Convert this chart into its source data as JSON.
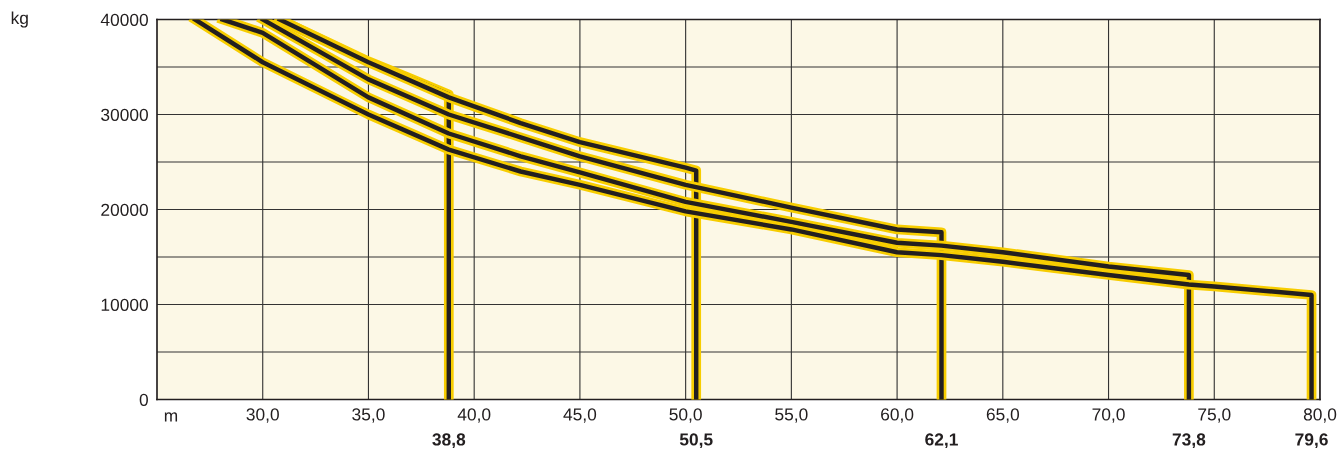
{
  "chart_data": {
    "type": "line",
    "xlabel": "m",
    "ylabel": "kg",
    "xlim": [
      25,
      80
    ],
    "ylim": [
      0,
      40000
    ],
    "xticks": [
      {
        "value": 30,
        "label": "30,0"
      },
      {
        "value": 35,
        "label": "35,0"
      },
      {
        "value": 40,
        "label": "40,0"
      },
      {
        "value": 45,
        "label": "45,0"
      },
      {
        "value": 50,
        "label": "50,0"
      },
      {
        "value": 55,
        "label": "55,0"
      },
      {
        "value": 60,
        "label": "60,0"
      },
      {
        "value": 65,
        "label": "65,0"
      },
      {
        "value": 70,
        "label": "70,0"
      },
      {
        "value": 75,
        "label": "75,0"
      },
      {
        "value": 80,
        "label": "80,0"
      }
    ],
    "yticks": [
      0,
      {
        "value": 5000,
        "label": null
      },
      10000,
      {
        "value": 15000,
        "label": null
      },
      20000,
      {
        "value": 25000,
        "label": null
      },
      30000,
      {
        "value": 35000,
        "label": null
      },
      40000
    ],
    "grid": true,
    "line_style": "solid",
    "marker": "none",
    "series": [
      {
        "color": "#231f20",
        "x": [
          30.8,
          33.0,
          35.0,
          37.0,
          38.8,
          38.8
        ],
        "values": [
          40000,
          37700,
          35600,
          33800,
          32100,
          0
        ]
      },
      {
        "color": "#231f20",
        "x": [
          30.8,
          35.0,
          38.8,
          42.2,
          45.0,
          50.0,
          50.5,
          50.5
        ],
        "values": [
          40000,
          35500,
          31800,
          29100,
          27100,
          24400,
          24100,
          0
        ]
      },
      {
        "color": "#231f20",
        "x": [
          30.0,
          35.0,
          38.8,
          42.2,
          45.0,
          50.0,
          55.0,
          60.0,
          62.1,
          62.1
        ],
        "values": [
          40000,
          33700,
          30000,
          27600,
          25600,
          22600,
          20200,
          17900,
          17600,
          0
        ]
      },
      {
        "color": "#231f20",
        "x": [
          28.1,
          30.0,
          35.0,
          38.8,
          42.2,
          45.0,
          50.0,
          55.0,
          60.0,
          62.1,
          65.0,
          70.0,
          73.8,
          73.8
        ],
        "values": [
          40000,
          38600,
          31800,
          28000,
          25600,
          23900,
          20800,
          18700,
          16500,
          16200,
          15500,
          14000,
          13100,
          0
        ]
      },
      {
        "color": "#231f20",
        "x": [
          26.8,
          30.0,
          35.0,
          38.8,
          42.2,
          45.0,
          50.0,
          55.0,
          60.0,
          62.1,
          65.0,
          70.0,
          73.8,
          75.0,
          79.6,
          79.6
        ],
        "values": [
          40000,
          35500,
          30000,
          26300,
          24000,
          22600,
          19800,
          17900,
          15500,
          15200,
          14500,
          13100,
          12100,
          11900,
          11000,
          0
        ]
      }
    ],
    "annotations": [
      {
        "text": "38,8",
        "x": 38.8,
        "y": 0
      },
      {
        "text": "50,5",
        "x": 50.5,
        "y": 0
      },
      {
        "text": "62,1",
        "x": 62.1,
        "y": 0
      },
      {
        "text": "73,8",
        "x": 73.8,
        "y": 0
      },
      {
        "text": "79,6",
        "x": 79.6,
        "y": 0
      }
    ]
  }
}
